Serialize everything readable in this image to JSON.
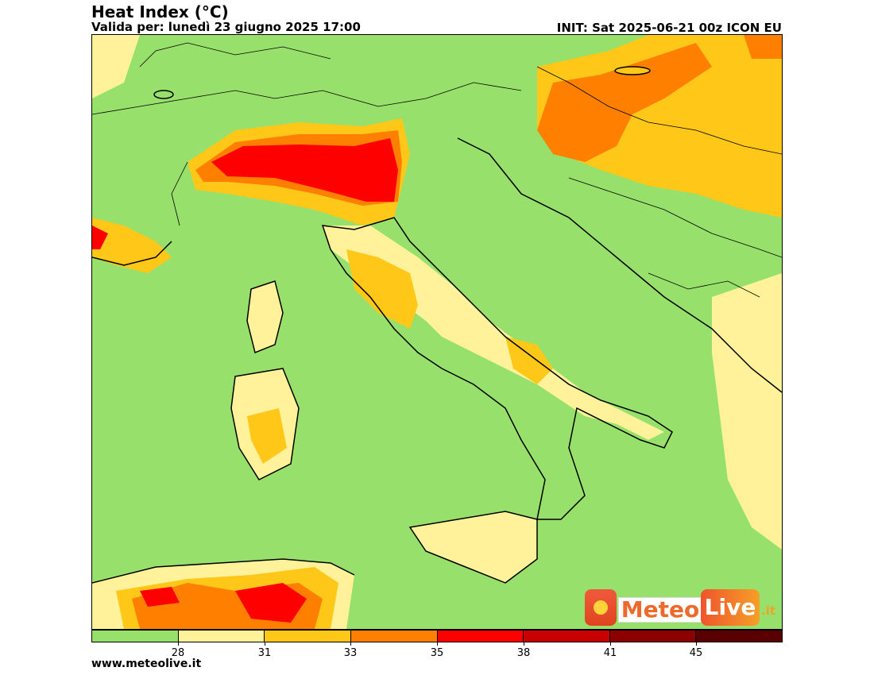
{
  "header": {
    "title": "Heat Index (°C)",
    "subtitle": "Valida per: lunedì 23 giugno 2025 17:00",
    "init": "INIT: Sat 2025-06-21 00z ICON EU"
  },
  "legend": {
    "colors": [
      "#98e06c",
      "#fff29a",
      "#ffc718",
      "#ff7f00",
      "#ff0000",
      "#c80000",
      "#8c0000",
      "#5a0000"
    ],
    "tick_labels": [
      "28",
      "31",
      "33",
      "35",
      "38",
      "41",
      "45"
    ]
  },
  "logo": {
    "meteo": "Meteo",
    "live": "Live",
    "tld": ".it"
  },
  "footer": {
    "site": "www.meteolive.it"
  }
}
